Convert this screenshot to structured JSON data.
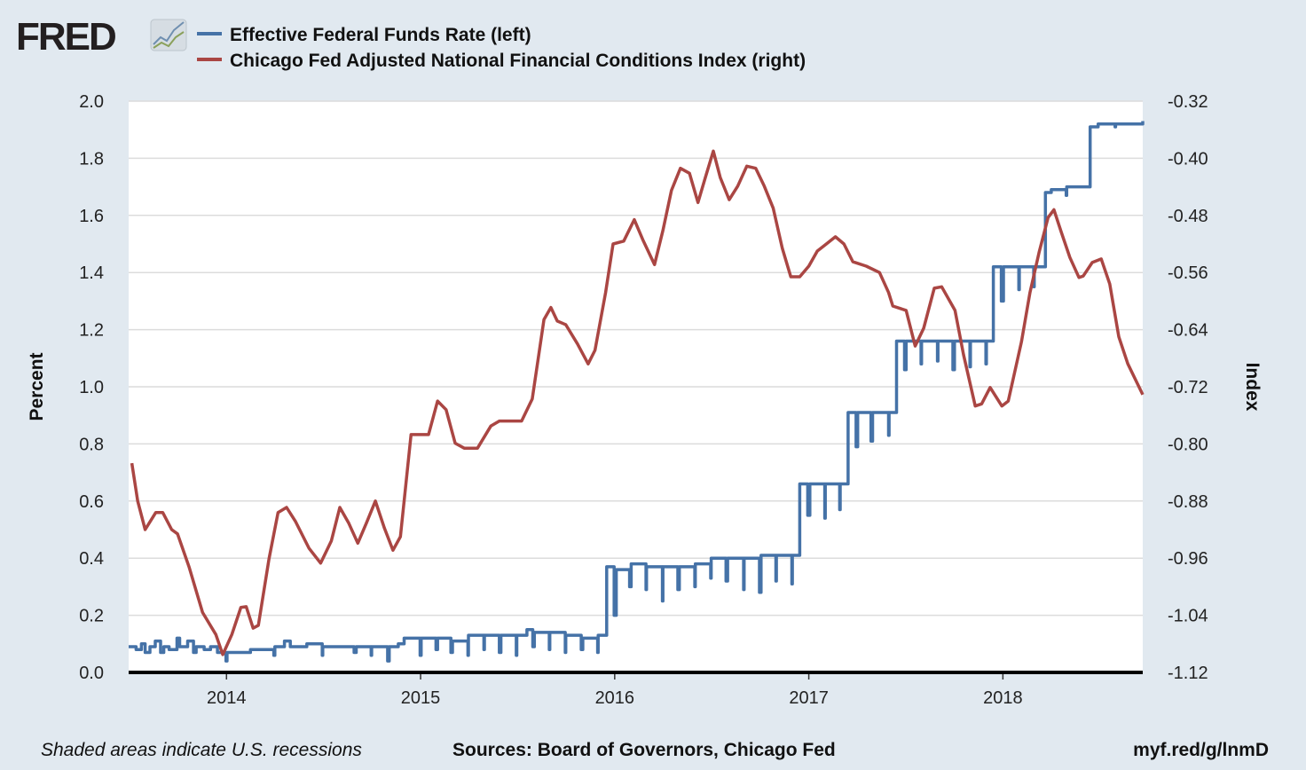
{
  "header": {
    "logo_text": "FRED",
    "logo_icon": "line-chart-icon"
  },
  "footer": {
    "note": "Shaded areas indicate U.S. recessions",
    "sources": "Sources: Board of Governors, Chicago Fed",
    "link": "myf.red/g/lnmD"
  },
  "chart_data": {
    "type": "line",
    "title": "",
    "xlabel": "",
    "ylabel": "Percent",
    "y2label": "Index",
    "xlim": [
      "2013-07-01",
      "2018-09-21"
    ],
    "ylim": [
      0,
      2.0
    ],
    "y2lim": [
      -1.12,
      -0.32
    ],
    "x_ticks": [
      "2014",
      "2015",
      "2016",
      "2017",
      "2018"
    ],
    "y_ticks": [
      "0.0",
      "0.2",
      "0.4",
      "0.6",
      "0.8",
      "1.0",
      "1.2",
      "1.4",
      "1.6",
      "1.8",
      "2.0"
    ],
    "y2_ticks": [
      "-1.12",
      "-1.04",
      "-0.96",
      "-0.88",
      "-0.80",
      "-0.72",
      "-0.64",
      "-0.56",
      "-0.48",
      "-0.40",
      "-0.32"
    ],
    "grid": true,
    "legend_position": "top-left",
    "series": [
      {
        "name": "Effective Federal Funds Rate (left)",
        "axis": "left",
        "color": "#4572a7",
        "step": true,
        "points": [
          [
            "2013-07-01",
            0.09
          ],
          [
            "2013-07-15",
            0.08
          ],
          [
            "2013-07-25",
            0.1
          ],
          [
            "2013-08-01",
            0.07
          ],
          [
            "2013-08-10",
            0.09
          ],
          [
            "2013-08-20",
            0.11
          ],
          [
            "2013-08-30",
            0.07
          ],
          [
            "2013-09-05",
            0.09
          ],
          [
            "2013-09-15",
            0.08
          ],
          [
            "2013-09-30",
            0.12
          ],
          [
            "2013-10-05",
            0.09
          ],
          [
            "2013-10-20",
            0.11
          ],
          [
            "2013-10-31",
            0.07
          ],
          [
            "2013-11-05",
            0.09
          ],
          [
            "2013-11-20",
            0.08
          ],
          [
            "2013-12-02",
            0.09
          ],
          [
            "2013-12-15",
            0.07
          ],
          [
            "2013-12-31",
            0.04
          ],
          [
            "2014-01-02",
            0.07
          ],
          [
            "2014-02-15",
            0.08
          ],
          [
            "2014-03-31",
            0.06
          ],
          [
            "2014-04-02",
            0.09
          ],
          [
            "2014-04-20",
            0.11
          ],
          [
            "2014-05-01",
            0.09
          ],
          [
            "2014-06-01",
            0.1
          ],
          [
            "2014-06-30",
            0.06
          ],
          [
            "2014-07-01",
            0.09
          ],
          [
            "2014-08-29",
            0.07
          ],
          [
            "2014-09-02",
            0.09
          ],
          [
            "2014-09-30",
            0.06
          ],
          [
            "2014-10-01",
            0.09
          ],
          [
            "2014-10-31",
            0.04
          ],
          [
            "2014-11-03",
            0.09
          ],
          [
            "2014-11-20",
            0.1
          ],
          [
            "2014-12-01",
            0.12
          ],
          [
            "2014-12-31",
            0.06
          ],
          [
            "2015-01-02",
            0.12
          ],
          [
            "2015-01-30",
            0.08
          ],
          [
            "2015-02-02",
            0.12
          ],
          [
            "2015-02-27",
            0.07
          ],
          [
            "2015-03-02",
            0.11
          ],
          [
            "2015-03-31",
            0.06
          ],
          [
            "2015-04-01",
            0.13
          ],
          [
            "2015-04-30",
            0.08
          ],
          [
            "2015-05-01",
            0.13
          ],
          [
            "2015-05-29",
            0.07
          ],
          [
            "2015-06-01",
            0.13
          ],
          [
            "2015-06-30",
            0.06
          ],
          [
            "2015-07-01",
            0.13
          ],
          [
            "2015-07-20",
            0.15
          ],
          [
            "2015-07-31",
            0.09
          ],
          [
            "2015-08-03",
            0.14
          ],
          [
            "2015-08-31",
            0.08
          ],
          [
            "2015-09-01",
            0.14
          ],
          [
            "2015-09-30",
            0.07
          ],
          [
            "2015-10-01",
            0.13
          ],
          [
            "2015-10-30",
            0.08
          ],
          [
            "2015-11-02",
            0.12
          ],
          [
            "2015-11-30",
            0.07
          ],
          [
            "2015-12-01",
            0.13
          ],
          [
            "2015-12-17",
            0.37
          ],
          [
            "2015-12-31",
            0.2
          ],
          [
            "2016-01-04",
            0.36
          ],
          [
            "2016-01-29",
            0.3
          ],
          [
            "2016-02-01",
            0.38
          ],
          [
            "2016-02-29",
            0.29
          ],
          [
            "2016-03-01",
            0.37
          ],
          [
            "2016-03-31",
            0.25
          ],
          [
            "2016-04-01",
            0.37
          ],
          [
            "2016-04-29",
            0.29
          ],
          [
            "2016-05-02",
            0.37
          ],
          [
            "2016-05-31",
            0.3
          ],
          [
            "2016-06-01",
            0.38
          ],
          [
            "2016-06-30",
            0.33
          ],
          [
            "2016-07-01",
            0.4
          ],
          [
            "2016-07-29",
            0.32
          ],
          [
            "2016-08-01",
            0.4
          ],
          [
            "2016-08-31",
            0.29
          ],
          [
            "2016-09-01",
            0.4
          ],
          [
            "2016-09-30",
            0.28
          ],
          [
            "2016-10-03",
            0.41
          ],
          [
            "2016-10-31",
            0.32
          ],
          [
            "2016-11-01",
            0.41
          ],
          [
            "2016-11-30",
            0.31
          ],
          [
            "2016-12-01",
            0.41
          ],
          [
            "2016-12-15",
            0.66
          ],
          [
            "2016-12-30",
            0.55
          ],
          [
            "2017-01-03",
            0.66
          ],
          [
            "2017-01-31",
            0.54
          ],
          [
            "2017-02-01",
            0.66
          ],
          [
            "2017-02-28",
            0.57
          ],
          [
            "2017-03-01",
            0.66
          ],
          [
            "2017-03-16",
            0.91
          ],
          [
            "2017-03-31",
            0.79
          ],
          [
            "2017-04-03",
            0.91
          ],
          [
            "2017-04-28",
            0.81
          ],
          [
            "2017-05-01",
            0.91
          ],
          [
            "2017-05-31",
            0.83
          ],
          [
            "2017-06-01",
            0.91
          ],
          [
            "2017-06-15",
            1.16
          ],
          [
            "2017-06-30",
            1.06
          ],
          [
            "2017-07-03",
            1.16
          ],
          [
            "2017-07-31",
            1.08
          ],
          [
            "2017-08-01",
            1.16
          ],
          [
            "2017-08-31",
            1.09
          ],
          [
            "2017-09-01",
            1.16
          ],
          [
            "2017-09-29",
            1.06
          ],
          [
            "2017-10-02",
            1.16
          ],
          [
            "2017-10-31",
            1.07
          ],
          [
            "2017-11-01",
            1.16
          ],
          [
            "2017-11-30",
            1.08
          ],
          [
            "2017-12-01",
            1.16
          ],
          [
            "2017-12-14",
            1.42
          ],
          [
            "2017-12-29",
            1.3
          ],
          [
            "2018-01-02",
            1.42
          ],
          [
            "2018-01-31",
            1.34
          ],
          [
            "2018-02-01",
            1.42
          ],
          [
            "2018-02-28",
            1.35
          ],
          [
            "2018-03-01",
            1.42
          ],
          [
            "2018-03-22",
            1.68
          ],
          [
            "2018-04-02",
            1.69
          ],
          [
            "2018-04-30",
            1.67
          ],
          [
            "2018-05-01",
            1.7
          ],
          [
            "2018-06-14",
            1.91
          ],
          [
            "2018-06-29",
            1.92
          ],
          [
            "2018-07-31",
            1.91
          ],
          [
            "2018-08-01",
            1.92
          ],
          [
            "2018-09-21",
            1.93
          ]
        ]
      },
      {
        "name": "Chicago Fed Adjusted National Financial Conditions Index (right)",
        "axis": "right",
        "color": "#aa4643",
        "step": false,
        "points": [
          [
            "2013-07-07",
            -0.827
          ],
          [
            "2013-07-18",
            -0.88
          ],
          [
            "2013-08-01",
            -0.92
          ],
          [
            "2013-08-21",
            -0.896
          ],
          [
            "2013-09-03",
            -0.896
          ],
          [
            "2013-09-20",
            -0.92
          ],
          [
            "2013-10-01",
            -0.926
          ],
          [
            "2013-10-23",
            -0.973
          ],
          [
            "2013-11-17",
            -1.036
          ],
          [
            "2013-12-12",
            -1.067
          ],
          [
            "2013-12-25",
            -1.095
          ],
          [
            "2014-01-11",
            -1.067
          ],
          [
            "2014-01-28",
            -1.029
          ],
          [
            "2014-02-07",
            -1.028
          ],
          [
            "2014-02-20",
            -1.058
          ],
          [
            "2014-03-02",
            -1.054
          ],
          [
            "2014-03-22",
            -0.961
          ],
          [
            "2014-04-08",
            -0.896
          ],
          [
            "2014-04-24",
            -0.889
          ],
          [
            "2014-05-11",
            -0.909
          ],
          [
            "2014-06-05",
            -0.946
          ],
          [
            "2014-06-27",
            -0.967
          ],
          [
            "2014-07-17",
            -0.936
          ],
          [
            "2014-08-02",
            -0.889
          ],
          [
            "2014-08-19",
            -0.911
          ],
          [
            "2014-09-05",
            -0.939
          ],
          [
            "2014-09-21",
            -0.911
          ],
          [
            "2014-10-08",
            -0.88
          ],
          [
            "2014-10-25",
            -0.918
          ],
          [
            "2014-11-10",
            -0.949
          ],
          [
            "2014-11-24",
            -0.93
          ],
          [
            "2014-12-14",
            -0.787
          ],
          [
            "2014-12-30",
            -0.787
          ],
          [
            "2015-01-16",
            -0.787
          ],
          [
            "2015-02-02",
            -0.74
          ],
          [
            "2015-02-18",
            -0.752
          ],
          [
            "2015-03-07",
            -0.799
          ],
          [
            "2015-03-24",
            -0.806
          ],
          [
            "2015-04-18",
            -0.806
          ],
          [
            "2015-05-13",
            -0.775
          ],
          [
            "2015-05-29",
            -0.768
          ],
          [
            "2015-07-10",
            -0.768
          ],
          [
            "2015-07-30",
            -0.737
          ],
          [
            "2015-08-21",
            -0.626
          ],
          [
            "2015-09-03",
            -0.609
          ],
          [
            "2015-09-15",
            -0.628
          ],
          [
            "2015-10-01",
            -0.633
          ],
          [
            "2015-10-23",
            -0.66
          ],
          [
            "2015-11-12",
            -0.688
          ],
          [
            "2015-11-25",
            -0.669
          ],
          [
            "2015-12-15",
            -0.588
          ],
          [
            "2015-12-29",
            -0.52
          ],
          [
            "2016-01-18",
            -0.516
          ],
          [
            "2016-02-07",
            -0.486
          ],
          [
            "2016-02-23",
            -0.514
          ],
          [
            "2016-03-16",
            -0.549
          ],
          [
            "2016-04-01",
            -0.501
          ],
          [
            "2016-04-17",
            -0.445
          ],
          [
            "2016-05-04",
            -0.414
          ],
          [
            "2016-05-21",
            -0.421
          ],
          [
            "2016-06-06",
            -0.462
          ],
          [
            "2016-06-20",
            -0.427
          ],
          [
            "2016-07-05",
            -0.39
          ],
          [
            "2016-07-18",
            -0.427
          ],
          [
            "2016-08-04",
            -0.458
          ],
          [
            "2016-08-20",
            -0.439
          ],
          [
            "2016-09-06",
            -0.411
          ],
          [
            "2016-09-23",
            -0.414
          ],
          [
            "2016-10-09",
            -0.439
          ],
          [
            "2016-10-26",
            -0.47
          ],
          [
            "2016-11-12",
            -0.526
          ],
          [
            "2016-11-28",
            -0.566
          ],
          [
            "2016-12-15",
            -0.566
          ],
          [
            "2017-01-01",
            -0.551
          ],
          [
            "2017-01-17",
            -0.53
          ],
          [
            "2017-02-03",
            -0.52
          ],
          [
            "2017-02-20",
            -0.51
          ],
          [
            "2017-03-08",
            -0.52
          ],
          [
            "2017-03-25",
            -0.545
          ],
          [
            "2017-04-19",
            -0.551
          ],
          [
            "2017-05-14",
            -0.56
          ],
          [
            "2017-05-31",
            -0.588
          ],
          [
            "2017-06-08",
            -0.607
          ],
          [
            "2017-07-03",
            -0.613
          ],
          [
            "2017-07-20",
            -0.663
          ],
          [
            "2017-08-05",
            -0.638
          ],
          [
            "2017-08-25",
            -0.582
          ],
          [
            "2017-09-08",
            -0.58
          ],
          [
            "2017-10-03",
            -0.613
          ],
          [
            "2017-10-19",
            -0.675
          ],
          [
            "2017-11-10",
            -0.747
          ],
          [
            "2017-11-22",
            -0.744
          ],
          [
            "2017-12-08",
            -0.721
          ],
          [
            "2017-12-30",
            -0.747
          ],
          [
            "2018-01-11",
            -0.74
          ],
          [
            "2018-02-05",
            -0.657
          ],
          [
            "2018-02-21",
            -0.588
          ],
          [
            "2018-03-10",
            -0.532
          ],
          [
            "2018-03-27",
            -0.483
          ],
          [
            "2018-04-07",
            -0.472
          ],
          [
            "2018-04-21",
            -0.504
          ],
          [
            "2018-05-07",
            -0.539
          ],
          [
            "2018-05-24",
            -0.567
          ],
          [
            "2018-06-01",
            -0.565
          ],
          [
            "2018-06-18",
            -0.546
          ],
          [
            "2018-07-05",
            -0.541
          ],
          [
            "2018-07-21",
            -0.576
          ],
          [
            "2018-08-07",
            -0.65
          ],
          [
            "2018-08-24",
            -0.688
          ],
          [
            "2018-09-21",
            -0.731
          ]
        ]
      }
    ]
  }
}
